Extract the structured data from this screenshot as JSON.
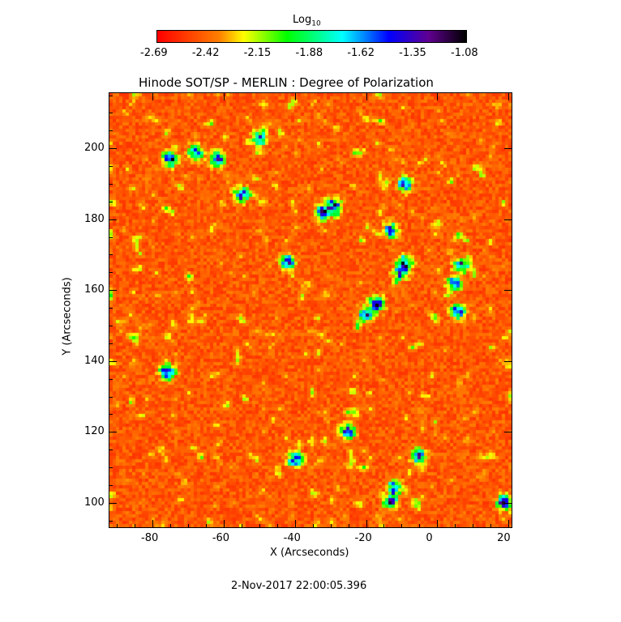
{
  "chart_data": {
    "type": "heatmap",
    "title": "Hinode SOT/SP - MERLIN : Degree of Polarization",
    "xlabel": "X (Arcseconds)",
    "ylabel": "Y (Arcseconds)",
    "xlim": [
      -92.3,
      21.1
    ],
    "ylim": [
      92.9,
      215.8
    ],
    "xticks": [
      "-80",
      "-60",
      "-40",
      "-20",
      "0",
      "20"
    ],
    "xtick_values": [
      -80,
      -60,
      -40,
      -20,
      0,
      20
    ],
    "yticks": [
      "100",
      "120",
      "140",
      "160",
      "180",
      "200"
    ],
    "ytick_values": [
      100,
      120,
      140,
      160,
      180,
      200
    ],
    "colorbar": {
      "label": "Log",
      "label_sub": "10",
      "range": [
        -2.69,
        -1.08
      ],
      "ticks": [
        "-2.69",
        "-2.42",
        "-2.15",
        "-1.88",
        "-1.62",
        "-1.35",
        "-1.08"
      ],
      "colormap": [
        "#ff0000",
        "#ff8000",
        "#ffff00",
        "#00ff00",
        "#00ffff",
        "#0000ff",
        "#600090",
        "#000000"
      ]
    },
    "strong_polarization_regions": [
      [
        -32,
        182
      ],
      [
        -29,
        184
      ],
      [
        -13,
        177
      ],
      [
        -9,
        168
      ],
      [
        -10,
        165
      ],
      [
        7,
        167
      ],
      [
        5,
        162
      ],
      [
        -17,
        156
      ],
      [
        -20,
        153
      ],
      [
        6,
        154
      ],
      [
        -75,
        197
      ],
      [
        -68,
        199
      ],
      [
        -62,
        197
      ],
      [
        -50,
        203
      ],
      [
        -55,
        187
      ],
      [
        -9,
        190
      ],
      [
        -42,
        168
      ],
      [
        -13,
        100
      ],
      [
        -12,
        104
      ],
      [
        -40,
        112
      ],
      [
        -25,
        120
      ],
      [
        -5,
        113
      ],
      [
        19,
        100
      ],
      [
        -76,
        137
      ]
    ],
    "footer": "2-Nov-2017 22:00:05.396"
  }
}
